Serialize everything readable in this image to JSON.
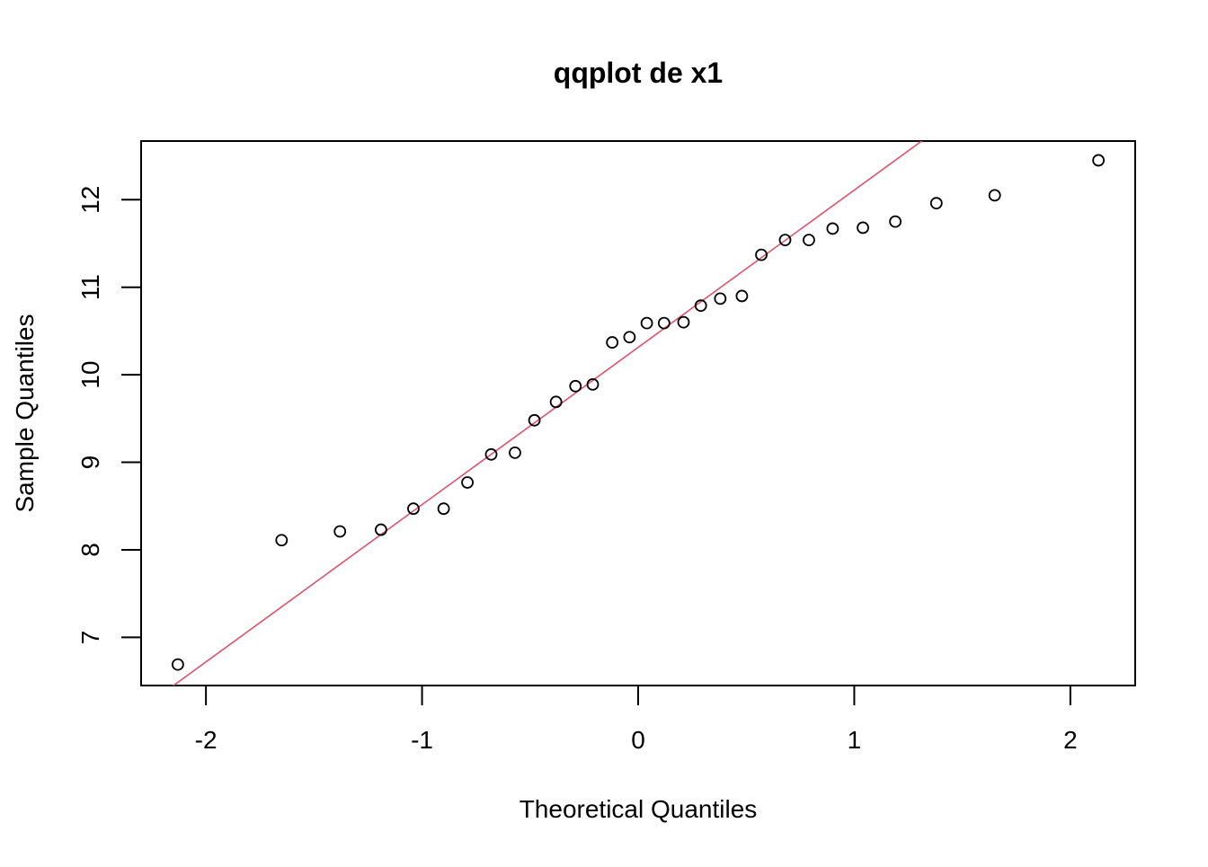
{
  "chart_data": {
    "type": "scatter",
    "title": "qqplot de x1",
    "xlabel": "Theoretical Quantiles",
    "ylabel": "Sample Quantiles",
    "xlim": [
      -2.3,
      2.3
    ],
    "ylim": [
      6.45,
      12.67
    ],
    "x_ticks": [
      -2,
      -1,
      0,
      1,
      2
    ],
    "x_tick_labels": [
      "-2",
      "-1",
      "0",
      "1",
      "2"
    ],
    "y_ticks": [
      7,
      8,
      9,
      10,
      11,
      12
    ],
    "y_tick_labels": [
      "7",
      "8",
      "9",
      "10",
      "11",
      "12"
    ],
    "grid": false,
    "series": [
      {
        "x": [
          -2.13,
          -1.65,
          -1.38,
          -1.19,
          -1.04,
          -0.9,
          -0.79,
          -0.68,
          -0.57,
          -0.48,
          -0.38,
          -0.29,
          -0.21,
          -0.12,
          -0.04,
          0.04,
          0.12,
          0.21,
          0.29,
          0.38,
          0.48,
          0.57,
          0.68,
          0.79,
          0.9,
          1.04,
          1.19,
          1.38,
          1.65,
          2.13
        ],
        "y": [
          6.69,
          8.11,
          8.21,
          8.23,
          8.47,
          8.47,
          8.77,
          9.09,
          9.11,
          9.48,
          9.69,
          9.87,
          9.89,
          10.37,
          10.43,
          10.59,
          10.59,
          10.6,
          10.79,
          10.87,
          10.9,
          11.37,
          11.54,
          11.54,
          11.67,
          11.68,
          11.75,
          11.96,
          12.05,
          12.45
        ],
        "marker": "open-circle",
        "color": "#000000"
      }
    ],
    "reference_line": {
      "points": [
        [
          -2.0,
          6.72
        ],
        [
          1.0,
          12.11
        ]
      ],
      "color": "#DF536B"
    }
  }
}
